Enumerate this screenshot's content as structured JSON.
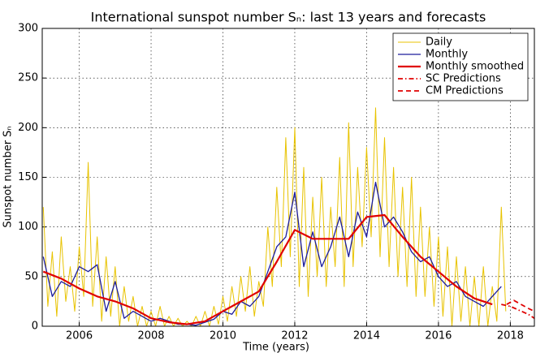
{
  "chart_data": {
    "type": "line",
    "title": "International sunspot number Sₙ: last 13 years and forecasts",
    "xlabel": "Time (years)",
    "ylabel": "Sunspot number Sₙ",
    "xlim": [
      2004.97,
      2018.67
    ],
    "ylim": [
      0,
      300
    ],
    "xticks": [
      2006,
      2008,
      2010,
      2012,
      2014,
      2016,
      2018
    ],
    "yticks": [
      0,
      50,
      100,
      150,
      200,
      250,
      300
    ],
    "grid": true,
    "legend": "upper right",
    "series": [
      {
        "name": "Daily",
        "color": "#e8c300",
        "style": "solid",
        "width": 1,
        "x": [
          2005,
          2005.125,
          2005.25,
          2005.375,
          2005.5,
          2005.625,
          2005.75,
          2005.875,
          2006,
          2006.125,
          2006.25,
          2006.375,
          2006.5,
          2006.625,
          2006.75,
          2006.875,
          2007,
          2007.125,
          2007.25,
          2007.375,
          2007.5,
          2007.625,
          2007.75,
          2007.875,
          2008,
          2008.125,
          2008.25,
          2008.375,
          2008.5,
          2008.625,
          2008.75,
          2008.875,
          2009,
          2009.125,
          2009.25,
          2009.375,
          2009.5,
          2009.625,
          2009.75,
          2009.875,
          2010,
          2010.125,
          2010.25,
          2010.375,
          2010.5,
          2010.625,
          2010.75,
          2010.875,
          2011,
          2011.125,
          2011.25,
          2011.375,
          2011.5,
          2011.625,
          2011.75,
          2011.875,
          2012,
          2012.125,
          2012.25,
          2012.375,
          2012.5,
          2012.625,
          2012.75,
          2012.875,
          2013,
          2013.125,
          2013.25,
          2013.375,
          2013.5,
          2013.625,
          2013.75,
          2013.875,
          2014,
          2014.125,
          2014.25,
          2014.375,
          2014.5,
          2014.625,
          2014.75,
          2014.875,
          2015,
          2015.125,
          2015.25,
          2015.375,
          2015.5,
          2015.625,
          2015.75,
          2015.875,
          2016,
          2016.125,
          2016.25,
          2016.375,
          2016.5,
          2016.625,
          2016.75,
          2016.875,
          2017,
          2017.125,
          2017.25,
          2017.375,
          2017.5,
          2017.625,
          2017.75,
          2017.875
        ],
        "values": [
          120,
          20,
          75,
          10,
          90,
          25,
          60,
          15,
          80,
          30,
          165,
          20,
          90,
          5,
          70,
          10,
          60,
          0,
          40,
          5,
          30,
          0,
          20,
          0,
          15,
          0,
          20,
          0,
          10,
          0,
          8,
          0,
          5,
          0,
          10,
          0,
          15,
          0,
          20,
          2,
          30,
          5,
          40,
          10,
          50,
          15,
          60,
          10,
          45,
          20,
          100,
          40,
          140,
          60,
          190,
          70,
          200,
          40,
          160,
          30,
          130,
          50,
          150,
          40,
          120,
          60,
          170,
          40,
          205,
          60,
          160,
          80,
          180,
          90,
          220,
          70,
          190,
          60,
          160,
          50,
          140,
          40,
          150,
          30,
          120,
          30,
          100,
          20,
          90,
          10,
          80,
          0,
          70,
          5,
          60,
          0,
          50,
          0,
          60,
          0,
          40,
          5,
          120,
          15
        ]
      },
      {
        "name": "Monthly",
        "color": "#1c1c9c",
        "style": "solid",
        "width": 1.3,
        "x": [
          2005,
          2005.25,
          2005.5,
          2005.75,
          2006,
          2006.25,
          2006.5,
          2006.75,
          2007,
          2007.25,
          2007.5,
          2007.75,
          2008,
          2008.25,
          2008.5,
          2008.75,
          2009,
          2009.25,
          2009.5,
          2009.75,
          2010,
          2010.25,
          2010.5,
          2010.75,
          2011,
          2011.25,
          2011.5,
          2011.75,
          2012,
          2012.25,
          2012.5,
          2012.75,
          2013,
          2013.25,
          2013.5,
          2013.75,
          2014,
          2014.25,
          2014.5,
          2014.75,
          2015,
          2015.25,
          2015.5,
          2015.75,
          2016,
          2016.25,
          2016.5,
          2016.75,
          2017,
          2017.25,
          2017.5,
          2017.75
        ],
        "values": [
          70,
          30,
          45,
          40,
          60,
          55,
          62,
          15,
          45,
          8,
          15,
          10,
          5,
          8,
          5,
          2,
          2,
          1,
          4,
          7,
          15,
          12,
          25,
          20,
          30,
          55,
          80,
          90,
          135,
          60,
          95,
          60,
          80,
          110,
          70,
          115,
          90,
          145,
          100,
          110,
          95,
          75,
          65,
          70,
          50,
          40,
          45,
          30,
          25,
          20,
          30,
          40
        ]
      },
      {
        "name": "Monthly smoothed",
        "color": "#e00000",
        "style": "solid",
        "width": 2.2,
        "x": [
          2005,
          2005.5,
          2006,
          2006.5,
          2007,
          2007.5,
          2008,
          2008.5,
          2009,
          2009.5,
          2010,
          2010.5,
          2011,
          2011.5,
          2012,
          2012.5,
          2013,
          2013.5,
          2014,
          2014.5,
          2015,
          2015.5,
          2016,
          2016.5,
          2017,
          2017.5
        ],
        "values": [
          55,
          48,
          38,
          30,
          25,
          18,
          8,
          4,
          2,
          5,
          15,
          25,
          35,
          65,
          97,
          88,
          88,
          88,
          110,
          112,
          90,
          70,
          55,
          40,
          28,
          22
        ]
      },
      {
        "name": "SC Predictions",
        "color": "#e00000",
        "style": "dashdot",
        "width": 1.8,
        "x": [
          2017.75,
          2018,
          2018.25,
          2018.5,
          2018.67
        ],
        "values": [
          22,
          20,
          16,
          12,
          8
        ]
      },
      {
        "name": "CM Predictions",
        "color": "#e00000",
        "style": "dashed",
        "width": 1.8,
        "x": [
          2017.9,
          2018.1,
          2018.3,
          2018.5,
          2018.67
        ],
        "values": [
          22,
          26,
          22,
          18,
          15
        ]
      }
    ]
  }
}
